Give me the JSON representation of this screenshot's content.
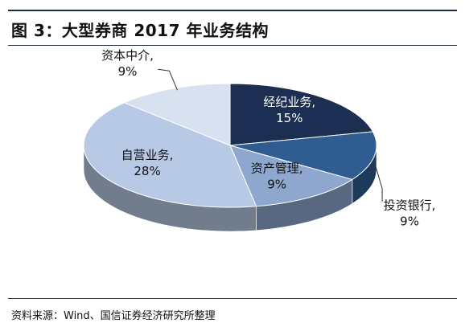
{
  "figure_title": "图 3：大型券商 2017 年业务结构",
  "source": "资料来源：Wind、国信证券经济研究所整理",
  "chart_data": {
    "type": "pie",
    "title": "",
    "slices": [
      {
        "name": "经纪业务",
        "label": "经纪业务,",
        "value": 15,
        "value_label": "15%",
        "color": "#1c2f52"
      },
      {
        "name": "投资银行",
        "label": "投资银行,",
        "value": 9,
        "value_label": "9%",
        "color": "#2f5d91"
      },
      {
        "name": "资产管理",
        "label": "资产管理,",
        "value": 9,
        "value_label": "9%",
        "color": "#8ea7cf"
      },
      {
        "name": "自营业务",
        "label": "自营业务,",
        "value": 28,
        "value_label": "28%",
        "color": "#b7c9e4"
      },
      {
        "name": "资本中介",
        "label": "资本中介,",
        "value": 9,
        "value_label": "9%",
        "color": "#d7e1ef"
      }
    ]
  }
}
